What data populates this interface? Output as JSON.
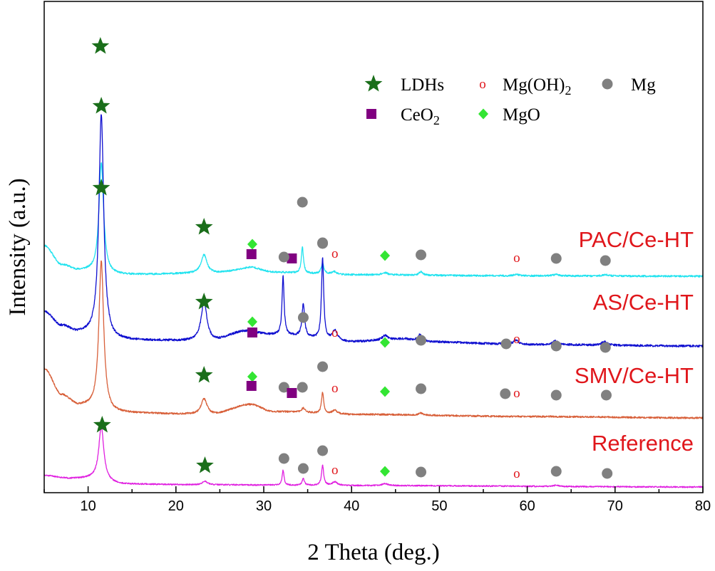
{
  "chart_data": {
    "type": "line",
    "xlabel": "2 Theta (deg.)",
    "ylabel": "Intensity (a.u.)",
    "xlim": [
      5,
      80
    ],
    "xticks": [
      10,
      20,
      30,
      40,
      50,
      60,
      70,
      80
    ],
    "legend": {
      "placement": "top-right",
      "entries": [
        {
          "key": "ldh",
          "symbol": "star",
          "label_text": "LDHs",
          "label_sub": "",
          "color": "#1a6e1a"
        },
        {
          "key": "mgoh2",
          "symbol": "o",
          "label_text": "Mg(OH)",
          "label_sub": "2",
          "color": "#e0161b"
        },
        {
          "key": "mg",
          "symbol": "circle",
          "label_text": "Mg",
          "label_sub": "",
          "color": "#808080"
        },
        {
          "key": "ceo2",
          "symbol": "square",
          "label_text": "CeO",
          "label_sub": "2",
          "color": "#800080"
        },
        {
          "key": "mgo",
          "symbol": "diamond",
          "label_text": "MgO",
          "label_sub": "",
          "color": "#33e533"
        }
      ]
    },
    "series": [
      {
        "name": "PAC/Ce-HT",
        "color": "#22e3ef",
        "baseline": 0.72,
        "seed": 11,
        "noise": 0.004,
        "background": [
          [
            5,
            1.15
          ],
          [
            7,
            0.88
          ],
          [
            9,
            0.8
          ],
          [
            13,
            0.74
          ],
          [
            24,
            0.76
          ],
          [
            28,
            0.8
          ],
          [
            31,
            0.77
          ],
          [
            40,
            0.74
          ],
          [
            60,
            0.725
          ],
          [
            80,
            0.72
          ]
        ],
        "peaks": [
          [
            11.5,
            1.55,
            0.32
          ],
          [
            23.2,
            0.26,
            0.4
          ],
          [
            28.7,
            0.05,
            1.2
          ],
          [
            34.4,
            0.36,
            0.15
          ],
          [
            36.7,
            0.15,
            0.18
          ],
          [
            38.0,
            0.04,
            0.35
          ],
          [
            43.8,
            0.03,
            0.4
          ],
          [
            47.9,
            0.05,
            0.25
          ],
          [
            58.8,
            0.02,
            0.4
          ],
          [
            63.3,
            0.02,
            0.4
          ],
          [
            68.9,
            0.02,
            0.4
          ]
        ],
        "markers": [
          {
            "type": "ldh",
            "x": 11.4,
            "y": 3.95
          },
          {
            "type": "ldh",
            "x": 23.2,
            "y": 1.41
          },
          {
            "type": "mgo",
            "x": 28.7,
            "y": 1.17
          },
          {
            "type": "ceo2",
            "x": 28.6,
            "y": 1.03
          },
          {
            "type": "ceo2",
            "x": 33.2,
            "y": 0.97
          },
          {
            "type": "mg",
            "x": 34.4,
            "y": 1.76
          },
          {
            "type": "mg",
            "x": 36.7,
            "y": 1.19
          },
          {
            "type": "mgoh2",
            "x": 38.1,
            "y": 1.04
          },
          {
            "type": "mgo",
            "x": 43.8,
            "y": 1.01
          },
          {
            "type": "mg",
            "x": 47.9,
            "y": 1.02
          },
          {
            "type": "mgoh2",
            "x": 58.8,
            "y": 0.98
          },
          {
            "type": "mg",
            "x": 63.3,
            "y": 0.97
          },
          {
            "type": "mg",
            "x": 68.9,
            "y": 0.94
          }
        ],
        "label": {
          "text": "PAC/Ce-HT",
          "x": 80,
          "y": 1.24
        }
      },
      {
        "name": "AS/Ce-HT",
        "color": "#1010d0",
        "baseline": -0.25,
        "seed": 23,
        "noise": 0.005,
        "background": [
          [
            5,
            0.22
          ],
          [
            7,
            0.02
          ],
          [
            9,
            -0.08
          ],
          [
            13,
            -0.18
          ],
          [
            24,
            -0.19
          ],
          [
            28,
            -0.05
          ],
          [
            31,
            -0.1
          ],
          [
            40,
            -0.2
          ],
          [
            46,
            -0.16
          ],
          [
            48,
            -0.2
          ],
          [
            60,
            -0.24
          ],
          [
            80,
            -0.26
          ]
        ],
        "peaks": [
          [
            11.5,
            3.15,
            0.33
          ],
          [
            23.2,
            0.55,
            0.4
          ],
          [
            32.2,
            0.82,
            0.14
          ],
          [
            34.5,
            0.46,
            0.18
          ],
          [
            36.7,
            1.15,
            0.15
          ],
          [
            38.1,
            0.14,
            0.35
          ],
          [
            43.8,
            0.06,
            0.35
          ],
          [
            47.8,
            0.1,
            0.3
          ],
          [
            57.5,
            0.04,
            0.3
          ],
          [
            58.7,
            0.06,
            0.3
          ],
          [
            63.2,
            0.05,
            0.35
          ],
          [
            68.8,
            0.05,
            0.35
          ]
        ],
        "markers": [
          {
            "type": "ldh",
            "x": 11.5,
            "y": 3.11
          },
          {
            "type": "ldh",
            "x": 23.2,
            "y": 0.36
          },
          {
            "type": "mgo",
            "x": 28.7,
            "y": 0.08
          },
          {
            "type": "ceo2",
            "x": 28.7,
            "y": -0.07
          },
          {
            "type": "mg",
            "x": 32.3,
            "y": 0.99
          },
          {
            "type": "mg",
            "x": 34.5,
            "y": 0.14
          },
          {
            "type": "mg",
            "x": 36.7,
            "y": 1.18
          },
          {
            "type": "mgoh2",
            "x": 38.1,
            "y": -0.07
          },
          {
            "type": "mgo",
            "x": 43.8,
            "y": -0.21
          },
          {
            "type": "mg",
            "x": 47.9,
            "y": -0.18
          },
          {
            "type": "mg",
            "x": 57.6,
            "y": -0.23
          },
          {
            "type": "mgoh2",
            "x": 58.8,
            "y": -0.16
          },
          {
            "type": "mg",
            "x": 63.3,
            "y": -0.26
          },
          {
            "type": "mg",
            "x": 68.9,
            "y": -0.28
          }
        ],
        "label": {
          "text": "AS/Ce-HT",
          "x": 80,
          "y": 0.36
        }
      },
      {
        "name": "SMV/Ce-HT",
        "color": "#d8603a",
        "baseline": -1.23,
        "seed": 37,
        "noise": 0.004,
        "background": [
          [
            5,
            -0.58
          ],
          [
            7,
            -0.95
          ],
          [
            9,
            -1.1
          ],
          [
            13,
            -1.2
          ],
          [
            24,
            -1.22
          ],
          [
            28.5,
            -1.08
          ],
          [
            31,
            -1.18
          ],
          [
            40,
            -1.22
          ],
          [
            60,
            -1.25
          ],
          [
            80,
            -1.27
          ]
        ],
        "peaks": [
          [
            11.5,
            2.1,
            0.33
          ],
          [
            23.2,
            0.22,
            0.4
          ],
          [
            34.5,
            0.06,
            0.25
          ],
          [
            36.7,
            0.3,
            0.15
          ],
          [
            38.1,
            0.05,
            0.35
          ],
          [
            47.9,
            0.03,
            0.3
          ]
        ],
        "markers": [
          {
            "type": "ldh",
            "x": 11.5,
            "y": 1.96
          },
          {
            "type": "ldh",
            "x": 23.2,
            "y": -0.67
          },
          {
            "type": "mgo",
            "x": 28.7,
            "y": -0.69
          },
          {
            "type": "ceo2",
            "x": 28.6,
            "y": -0.82
          },
          {
            "type": "mg",
            "x": 32.3,
            "y": -0.84
          },
          {
            "type": "ceo2",
            "x": 33.2,
            "y": -0.92
          },
          {
            "type": "mg",
            "x": 34.4,
            "y": -0.84
          },
          {
            "type": "mg",
            "x": 36.7,
            "y": -0.55
          },
          {
            "type": "mgoh2",
            "x": 38.1,
            "y": -0.85
          },
          {
            "type": "mgo",
            "x": 43.8,
            "y": -0.9
          },
          {
            "type": "mg",
            "x": 47.9,
            "y": -0.86
          },
          {
            "type": "mg",
            "x": 57.5,
            "y": -0.93
          },
          {
            "type": "mgoh2",
            "x": 58.8,
            "y": -0.92
          },
          {
            "type": "mg",
            "x": 63.3,
            "y": -0.95
          },
          {
            "type": "mg",
            "x": 69.0,
            "y": -0.95
          }
        ],
        "label": {
          "text": "SMV/Ce-HT",
          "x": 80,
          "y": -0.67
        }
      },
      {
        "name": "Reference",
        "color": "#e020e0",
        "baseline": -2.23,
        "seed": 51,
        "noise": 0.003,
        "background": [
          [
            5,
            -2.08
          ],
          [
            8,
            -2.12
          ],
          [
            10,
            -2.12
          ],
          [
            14,
            -2.2
          ],
          [
            24,
            -2.21
          ],
          [
            40,
            -2.22
          ],
          [
            80,
            -2.24
          ]
        ],
        "peaks": [
          [
            11.5,
            0.75,
            0.35
          ],
          [
            23.3,
            0.05,
            0.35
          ],
          [
            32.2,
            0.21,
            0.13
          ],
          [
            34.5,
            0.1,
            0.15
          ],
          [
            36.7,
            0.28,
            0.15
          ],
          [
            38.1,
            0.05,
            0.35
          ],
          [
            43.8,
            0.03,
            0.35
          ],
          [
            63.3,
            0.02,
            0.3
          ]
        ],
        "markers": [
          {
            "type": "ldh",
            "x": 11.6,
            "y": -1.37
          },
          {
            "type": "ldh",
            "x": 23.3,
            "y": -1.94
          },
          {
            "type": "mg",
            "x": 32.3,
            "y": -1.84
          },
          {
            "type": "mg",
            "x": 34.5,
            "y": -1.98
          },
          {
            "type": "mg",
            "x": 36.7,
            "y": -1.73
          },
          {
            "type": "mgoh2",
            "x": 38.1,
            "y": -2.0
          },
          {
            "type": "mgo",
            "x": 43.8,
            "y": -2.02
          },
          {
            "type": "mg",
            "x": 47.9,
            "y": -2.03
          },
          {
            "type": "mgoh2",
            "x": 58.8,
            "y": -2.05
          },
          {
            "type": "mg",
            "x": 63.3,
            "y": -2.02
          },
          {
            "type": "mg",
            "x": 69.1,
            "y": -2.05
          }
        ],
        "label": {
          "text": "Reference",
          "x": 80,
          "y": -1.62
        }
      }
    ]
  }
}
